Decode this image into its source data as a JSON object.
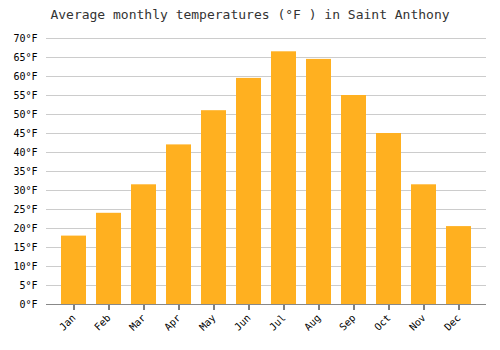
{
  "chart_data": {
    "type": "bar",
    "title": "Average monthly temperatures (°F ) in Saint Anthony",
    "categories": [
      "Jan",
      "Feb",
      "Mar",
      "Apr",
      "May",
      "Jun",
      "Jul",
      "Aug",
      "Sep",
      "Oct",
      "Nov",
      "Dec"
    ],
    "values": [
      18,
      24,
      31.5,
      42,
      51,
      59.5,
      66.5,
      64.5,
      55,
      45,
      31.5,
      20.5
    ],
    "color": "#FFB020",
    "ylim": [
      0,
      70
    ],
    "yticks": [
      {
        "value": 0,
        "label": "0°F"
      },
      {
        "value": 5,
        "label": "5°F"
      },
      {
        "value": 10,
        "label": "10°F"
      },
      {
        "value": 15,
        "label": "15°F"
      },
      {
        "value": 20,
        "label": "20°F"
      },
      {
        "value": 25,
        "label": "25°F"
      },
      {
        "value": 30,
        "label": "30°F"
      },
      {
        "value": 35,
        "label": "35°F"
      },
      {
        "value": 40,
        "label": "40°F"
      },
      {
        "value": 45,
        "label": "45°F"
      },
      {
        "value": 50,
        "label": "50°F"
      },
      {
        "value": 55,
        "label": "55°F"
      },
      {
        "value": 60,
        "label": "60°F"
      },
      {
        "value": 65,
        "label": "65°F"
      },
      {
        "value": 70,
        "label": "70°F"
      }
    ],
    "grid": true
  }
}
